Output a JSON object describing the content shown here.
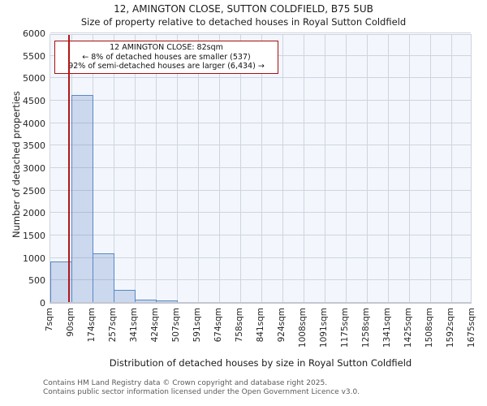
{
  "title": "12, AMINGTON CLOSE, SUTTON COLDFIELD, B75 5UB",
  "subtitle": "Size of property relative to detached houses in Royal Sutton Coldfield",
  "annotation": {
    "line1": "12 AMINGTON CLOSE: 82sqm",
    "line2": "← 8% of detached houses are smaller (537)",
    "line3": "92% of semi-detached houses are larger (6,434) →"
  },
  "footer": {
    "line1": "Contains HM Land Registry data © Crown copyright and database right 2025.",
    "line2": "Contains public sector information licensed under the Open Government Licence v3.0."
  },
  "chart_data": {
    "type": "bar",
    "title": "12, AMINGTON CLOSE, SUTTON COLDFIELD, B75 5UB",
    "subtitle": "Size of property relative to detached houses in Royal Sutton Coldfield",
    "xlabel": "Distribution of detached houses by size in Royal Sutton Coldfield",
    "ylabel": "Number of detached properties",
    "x_tick_labels": [
      "7sqm",
      "90sqm",
      "174sqm",
      "257sqm",
      "341sqm",
      "424sqm",
      "507sqm",
      "591sqm",
      "674sqm",
      "758sqm",
      "841sqm",
      "924sqm",
      "1008sqm",
      "1091sqm",
      "1175sqm",
      "1258sqm",
      "1341sqm",
      "1425sqm",
      "1508sqm",
      "1592sqm",
      "1675sqm"
    ],
    "bin_edges_sqm": [
      7,
      90,
      174,
      257,
      341,
      424,
      507,
      591,
      674,
      758,
      841,
      924,
      1008,
      1091,
      1175,
      1258,
      1341,
      1425,
      1508,
      1592,
      1675
    ],
    "values": [
      900,
      4600,
      1080,
      280,
      50,
      30,
      0,
      0,
      0,
      0,
      0,
      0,
      0,
      0,
      0,
      0,
      0,
      0,
      0,
      0
    ],
    "ylim": [
      0,
      6000
    ],
    "ytick_step": 500,
    "grid": true,
    "legend_position": "none",
    "marker_value_sqm": 82,
    "colors": {
      "bar_fill": "#d7e2f3",
      "bar_edge": "#5b87c5",
      "marker_red": "#b21717",
      "annotation_border": "#a80f0f",
      "plot_background": "#f3f6fc",
      "gridline": "#cfd4de"
    }
  }
}
